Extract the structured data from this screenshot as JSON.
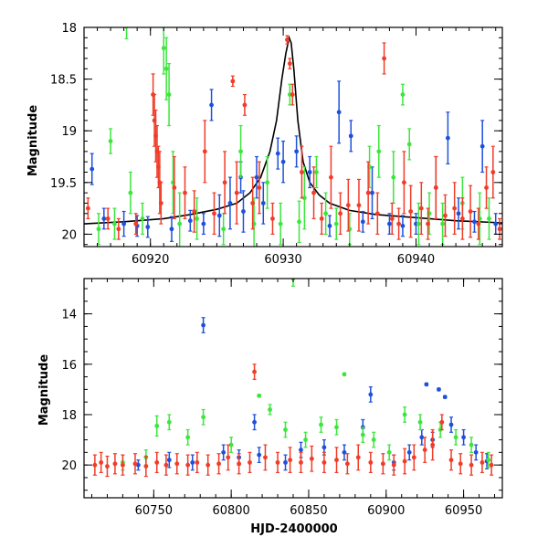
{
  "chart_data": [
    {
      "type": "scatter",
      "title": "",
      "xlabel": "",
      "ylabel": "Magnitude",
      "xlim": [
        60915,
        60946.5
      ],
      "ylim": [
        18.0,
        20.12
      ],
      "y_inverted": true,
      "x_ticks": [
        60920,
        60930,
        60940
      ],
      "x_tick_labels": [
        "60920",
        "60930",
        "60940"
      ],
      "y_ticks": [
        18,
        18.5,
        19,
        19.5,
        20
      ],
      "y_tick_labels": [
        "18",
        "18.5",
        "19",
        "19.5",
        "20"
      ],
      "model": {
        "name": "model",
        "color": "#000000",
        "x": [
          60915,
          60918,
          60921,
          60923,
          60925,
          60926.5,
          60927.5,
          60928.3,
          60929.0,
          60929.5,
          60929.9,
          60930.2,
          60930.45,
          60930.6,
          60930.8,
          60931.1,
          60931.5,
          60932.0,
          60932.7,
          60933.5,
          60935,
          60937,
          60940,
          60943,
          60946.5
        ],
        "y": [
          19.9,
          19.88,
          19.85,
          19.81,
          19.76,
          19.7,
          19.6,
          19.45,
          19.2,
          18.9,
          18.5,
          18.25,
          18.1,
          18.15,
          18.4,
          18.9,
          19.3,
          19.5,
          19.62,
          19.7,
          19.77,
          19.81,
          19.84,
          19.87,
          19.89
        ]
      },
      "series": [
        {
          "name": "blue",
          "color": "#1e50dc",
          "x": [
            60915.6,
            60916.5,
            60918.0,
            60919.0,
            60919.8,
            60921.6,
            60923.0,
            60924.0,
            60924.6,
            60925.2,
            60926.0,
            60926.8,
            60927.0,
            60928.0,
            60928.5,
            60929.6,
            60930.0,
            60931.0,
            60932.0,
            60933.5,
            60934.2,
            60935.1,
            60936.0,
            60936.7,
            60938.0,
            60939.0,
            60940.0,
            60941.5,
            60942.4,
            60943.2,
            60944.4,
            60945.0,
            60946.0
          ],
          "y": [
            19.37,
            19.85,
            19.9,
            19.92,
            19.93,
            19.95,
            19.87,
            19.9,
            18.75,
            19.82,
            19.7,
            19.45,
            19.78,
            19.45,
            19.7,
            19.22,
            19.3,
            19.2,
            19.4,
            19.92,
            18.82,
            19.05,
            19.88,
            19.6,
            19.9,
            19.92,
            19.9,
            19.55,
            19.07,
            19.8,
            19.88,
            19.15,
            19.9
          ],
          "err": [
            0.15,
            0.1,
            0.12,
            0.1,
            0.1,
            0.12,
            0.1,
            0.1,
            0.15,
            0.2,
            0.25,
            0.15,
            0.2,
            0.2,
            0.2,
            0.15,
            0.2,
            0.15,
            0.15,
            0.1,
            0.3,
            0.15,
            0.1,
            0.25,
            0.1,
            0.1,
            0.1,
            0.3,
            0.25,
            0.15,
            0.1,
            0.25,
            0.1
          ]
        },
        {
          "name": "green",
          "color": "#3ce63c",
          "x": [
            60916.1,
            60917.0,
            60917.3,
            60918.2,
            60918.5,
            60919.4,
            60921.0,
            60921.2,
            60921.4,
            60921.7,
            60922.2,
            60923.5,
            60925.5,
            60926.8,
            60927.8,
            60928.8,
            60929.8,
            60930.5,
            60931.2,
            60931.6,
            60932.5,
            60933.2,
            60934.0,
            60935.0,
            60936.5,
            60937.2,
            60938.3,
            60939.0,
            60939.5,
            60940.2,
            60941.0,
            60942.0,
            60943.5,
            60944.8,
            60945.5
          ],
          "y": [
            19.95,
            19.1,
            19.9,
            17.99,
            19.6,
            19.85,
            18.2,
            18.4,
            18.65,
            19.5,
            19.9,
            19.85,
            19.95,
            19.2,
            19.9,
            19.5,
            19.9,
            18.65,
            19.88,
            19.65,
            19.4,
            19.8,
            19.9,
            19.95,
            19.35,
            19.2,
            19.45,
            18.65,
            19.13,
            19.9,
            19.8,
            19.9,
            19.7,
            19.85,
            19.85
          ],
          "err": [
            0.15,
            0.12,
            0.15,
            0.12,
            0.2,
            0.15,
            0.25,
            0.3,
            0.3,
            0.3,
            0.3,
            0.2,
            0.15,
            0.25,
            0.25,
            0.25,
            0.2,
            0.1,
            0.2,
            0.3,
            0.15,
            0.2,
            0.15,
            0.15,
            0.2,
            0.25,
            0.25,
            0.1,
            0.15,
            0.2,
            0.2,
            0.2,
            0.25,
            0.25,
            0.2
          ]
        },
        {
          "name": "red",
          "color": "#f03c28",
          "x": [
            60915.3,
            60916.8,
            60917.6,
            60918.9,
            60920.2,
            60920.3,
            60920.4,
            60920.5,
            60920.6,
            60920.7,
            60920.8,
            60921.8,
            60922.6,
            60923.3,
            60924.1,
            60924.8,
            60925.6,
            60926.2,
            60926.5,
            60927.1,
            60927.7,
            60928.2,
            60929.2,
            60930.3,
            60930.5,
            60930.7,
            60931.4,
            60932.3,
            60932.9,
            60933.6,
            60934.3,
            60934.9,
            60935.7,
            60936.4,
            60937.1,
            60937.6,
            60938.2,
            60938.7,
            60939.1,
            60939.6,
            60940.4,
            60940.9,
            60941.5,
            60942.2,
            60942.9,
            60943.5,
            60944.1,
            60944.7,
            60945.3,
            60945.8,
            60946.3
          ],
          "y": [
            19.75,
            19.85,
            19.95,
            19.9,
            18.65,
            18.9,
            19.05,
            19.2,
            19.35,
            19.5,
            19.7,
            19.55,
            19.6,
            19.78,
            19.2,
            19.8,
            19.5,
            18.52,
            19.6,
            18.75,
            19.7,
            19.55,
            19.85,
            18.12,
            18.35,
            18.65,
            19.4,
            19.6,
            19.85,
            19.45,
            19.8,
            19.72,
            19.72,
            19.6,
            19.8,
            18.3,
            19.85,
            19.9,
            19.5,
            19.78,
            19.75,
            19.9,
            19.55,
            19.82,
            19.75,
            19.85,
            19.78,
            19.9,
            19.55,
            19.4,
            19.95
          ],
          "err": [
            0.1,
            0.1,
            0.1,
            0.1,
            0.2,
            0.25,
            0.25,
            0.25,
            0.2,
            0.3,
            0.2,
            0.3,
            0.25,
            0.2,
            0.3,
            0.2,
            0.3,
            0.05,
            0.3,
            0.1,
            0.25,
            0.25,
            0.15,
            0.04,
            0.05,
            0.1,
            0.25,
            0.25,
            0.15,
            0.3,
            0.2,
            0.25,
            0.25,
            0.3,
            0.2,
            0.15,
            0.15,
            0.15,
            0.3,
            0.25,
            0.25,
            0.15,
            0.3,
            0.2,
            0.25,
            0.2,
            0.25,
            0.15,
            0.2,
            0.25,
            0.1
          ]
        }
      ]
    },
    {
      "type": "scatter",
      "title": "",
      "xlabel": "HJD-2400000",
      "ylabel": "Magnitude",
      "xlim": [
        60705,
        60975
      ],
      "ylim": [
        12.6,
        21.3
      ],
      "y_inverted": true,
      "x_ticks": [
        60750,
        60800,
        60850,
        60900,
        60950
      ],
      "x_tick_labels": [
        "60750",
        "60800",
        "60850",
        "60900",
        "60950"
      ],
      "y_ticks": [
        14,
        16,
        18,
        20
      ],
      "y_tick_labels": [
        "14",
        "16",
        "18",
        "20"
      ],
      "series": [
        {
          "name": "blue",
          "color": "#1e50dc",
          "x": [
            60740,
            60760,
            60775,
            60782,
            60795,
            60805,
            60815,
            60818,
            60835,
            60845,
            60860,
            60873,
            60885,
            60890,
            60905,
            60915,
            60923,
            60926,
            60930,
            60934,
            60938,
            60942,
            60950,
            60958,
            60965
          ],
          "y": [
            20.0,
            19.8,
            19.9,
            14.45,
            19.5,
            19.7,
            18.3,
            19.6,
            19.9,
            19.4,
            19.3,
            19.5,
            18.5,
            17.2,
            19.9,
            19.5,
            18.9,
            16.8,
            19.0,
            17.0,
            17.3,
            18.4,
            18.9,
            19.5,
            19.85
          ],
          "err": [
            0.2,
            0.3,
            0.3,
            0.3,
            0.3,
            0.3,
            0.3,
            0.3,
            0.3,
            0.3,
            0.3,
            0.3,
            0.3,
            0.3,
            0.3,
            0.3,
            0.3,
            0.05,
            0.3,
            0.05,
            0.05,
            0.3,
            0.3,
            0.3,
            0.3
          ]
        },
        {
          "name": "green",
          "color": "#3ce63c",
          "x": [
            60730,
            60745,
            60752,
            60760,
            60772,
            60782,
            60800,
            60818,
            60825,
            60835,
            60840,
            60848,
            60858,
            60868,
            60873,
            60885,
            60892,
            60902,
            60912,
            60922,
            60935,
            60945,
            60955,
            60966
          ],
          "y": [
            19.9,
            19.7,
            18.45,
            18.3,
            18.9,
            18.1,
            19.2,
            17.25,
            17.8,
            18.6,
            12.6,
            19.0,
            18.4,
            18.5,
            16.4,
            18.8,
            19.0,
            19.5,
            18.0,
            18.3,
            18.6,
            18.9,
            19.2,
            19.8
          ],
          "err": [
            0.3,
            0.3,
            0.4,
            0.3,
            0.3,
            0.3,
            0.3,
            0.05,
            0.2,
            0.3,
            0.3,
            0.3,
            0.3,
            0.3,
            0.05,
            0.3,
            0.3,
            0.3,
            0.3,
            0.3,
            0.3,
            0.3,
            0.3,
            0.3
          ]
        },
        {
          "name": "red",
          "color": "#f03c28",
          "x": [
            60712,
            60716,
            60720,
            60725,
            60730,
            60738,
            60745,
            60752,
            60758,
            60765,
            60772,
            60778,
            60785,
            60792,
            60798,
            60805,
            60812,
            60815,
            60822,
            60830,
            60838,
            60845,
            60852,
            60860,
            60868,
            60875,
            60882,
            60890,
            60898,
            60905,
            60912,
            60918,
            60925,
            60930,
            60936,
            60942,
            60948,
            60955,
            60962,
            60968
          ],
          "y": [
            20.0,
            19.9,
            20.05,
            19.95,
            20.0,
            19.95,
            20.05,
            19.9,
            20.0,
            19.95,
            20.0,
            19.9,
            20.0,
            19.95,
            19.7,
            19.95,
            19.9,
            16.3,
            19.7,
            19.9,
            19.8,
            19.9,
            19.75,
            19.9,
            19.8,
            19.95,
            19.7,
            19.9,
            19.95,
            20.0,
            19.85,
            19.7,
            19.4,
            19.2,
            18.3,
            19.8,
            19.95,
            20.0,
            19.9,
            20.0
          ],
          "err": [
            0.4,
            0.4,
            0.4,
            0.4,
            0.4,
            0.4,
            0.4,
            0.4,
            0.4,
            0.4,
            0.4,
            0.4,
            0.4,
            0.4,
            0.5,
            0.4,
            0.4,
            0.3,
            0.5,
            0.4,
            0.5,
            0.4,
            0.5,
            0.4,
            0.5,
            0.4,
            0.5,
            0.4,
            0.4,
            0.4,
            0.5,
            0.5,
            0.5,
            0.6,
            0.3,
            0.4,
            0.4,
            0.4,
            0.4,
            0.4
          ]
        }
      ]
    }
  ]
}
